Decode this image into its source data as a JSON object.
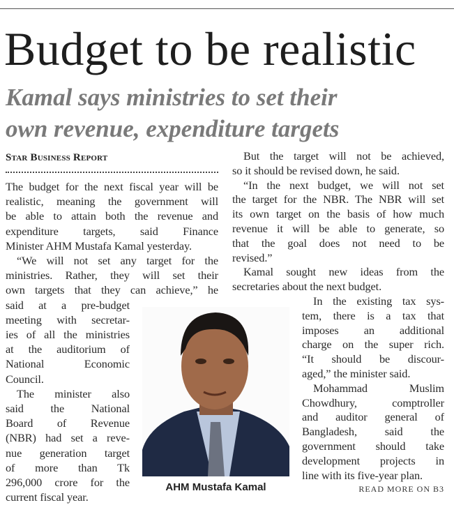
{
  "headline": "Budget to be realistic",
  "subheadline": [
    "Kamal says ministries to set their",
    "own revenue, expenditure targets"
  ],
  "byline": "Star Business Report",
  "left_column": [
    "The budget for the next fiscal year will be",
    "realistic, meaning the government will",
    "be able to attain both the revenue and",
    "expenditure targets, said Finance",
    "Minister AHM Mustafa Kamal yesterday.",
    "“We will not set any target for the",
    "ministries. Rather, they will set their",
    "own targets that they can achieve,” he",
    "said at a pre-budget",
    "meeting with secretar-",
    "ies of all the ministries",
    "at the auditorium of",
    "National Economic",
    "Council.",
    "The minister also",
    "said the National",
    "Board of Revenue",
    "(NBR) had set a reve-",
    "nue generation target",
    "of more than Tk",
    "296,000 crore for the",
    "current fiscal year."
  ],
  "right_column": [
    "But the target will not be achieved,",
    "so it should be revised down, he said.",
    "“In the next budget, we will not set",
    "the target for the NBR. The NBR will set",
    "its own target on the basis of how much",
    "revenue it will be able to generate, so",
    "that the goal does not need to be",
    "revised.”",
    "Kamal sought new ideas from the",
    "secretaries about the next budget.",
    "In the existing tax sys-",
    "tem, there is a tax that",
    "imposes an additional",
    "charge on the super rich.",
    "“It should be discour-",
    "aged,” the minister said.",
    "Mohammad Muslim",
    "Chowdhury, comptroller",
    "and auditor general of",
    "Bangladesh, said the",
    "government should take",
    "development projects in",
    "line with its five-year plan."
  ],
  "photo": {
    "caption": "AHM Mustafa Kamal",
    "description_icon": "portrait-photo"
  },
  "read_more": "READ MORE ON B3",
  "colors": {
    "headline": "#1e1e1e",
    "subheadline": "#7a7a7a",
    "body": "#2a2a2a"
  }
}
